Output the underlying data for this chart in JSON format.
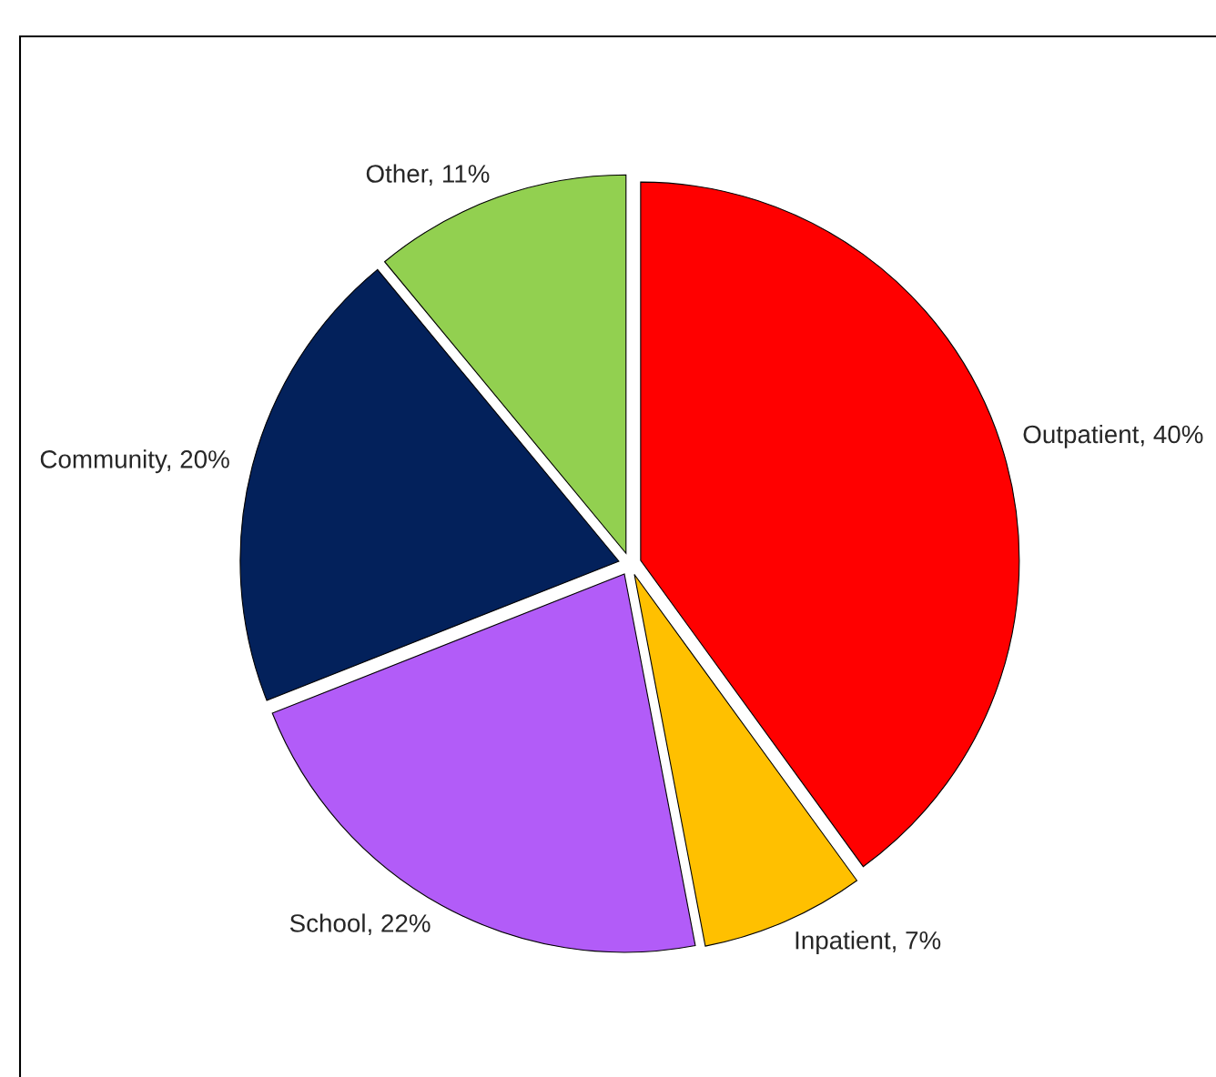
{
  "chart_data": {
    "type": "pie",
    "categories": [
      "Outpatient",
      "Inpatient",
      "School",
      "Community",
      "Other"
    ],
    "values": [
      40,
      7,
      22,
      20,
      11
    ],
    "value_labels": [
      "40%",
      "7%",
      "22%",
      "20%",
      "11%"
    ],
    "colors": [
      "#ff0000",
      "#ffc000",
      "#b25cf8",
      "#03215b",
      "#92d050"
    ],
    "legend": false
  }
}
